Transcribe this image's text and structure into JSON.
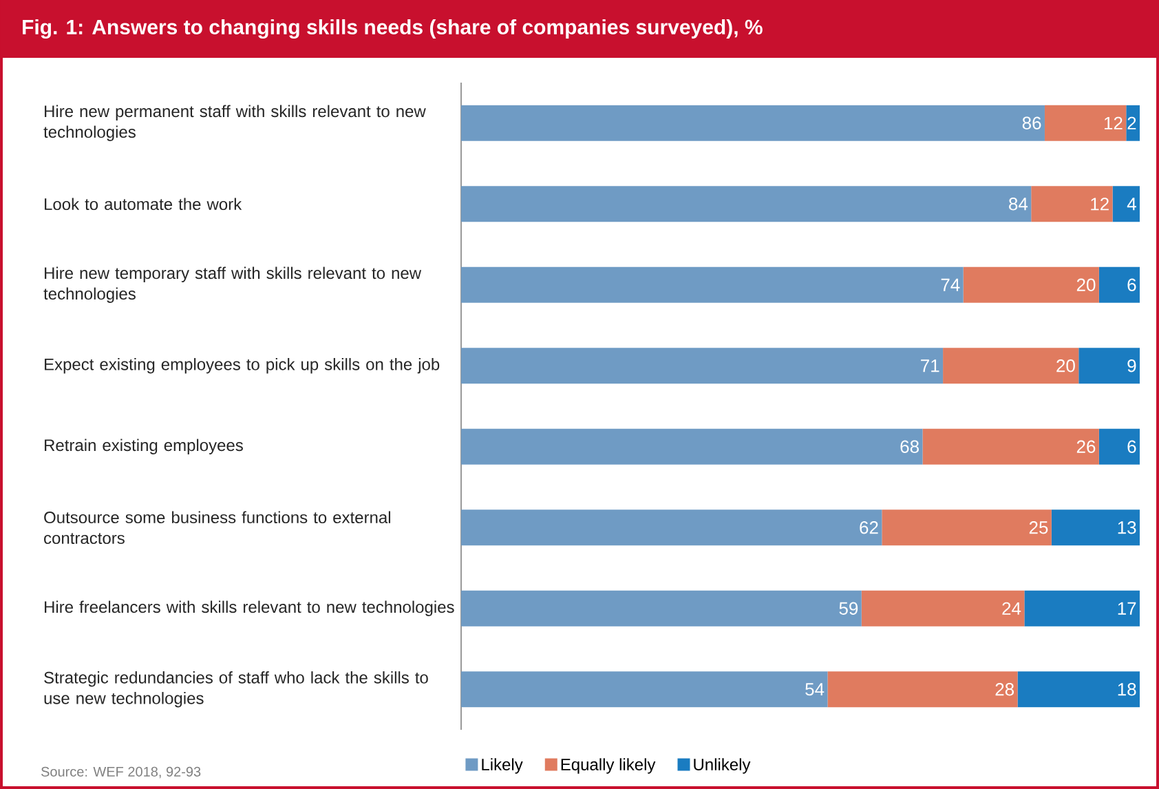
{
  "chart_data": {
    "type": "bar",
    "orientation": "horizontal",
    "stacked": true,
    "data_labels": true,
    "legend": "bottom",
    "title": "Fig. 1: Answers to changing skills needs (share of companies surveyed), %",
    "annotations": [
      "Source: WEF 2018, 92-93"
    ],
    "categories": [
      "Hire new permanent staff with skills relevant to new technologies",
      "Look to automate the work",
      "Hire new temporary staff with skills relevant to new technologies",
      "Expect existing employees to pick up skills on the job",
      "Retrain existing employees",
      "Outsource some business functions to external contractors",
      "Hire freelancers with skills relevant to new technologies",
      "Strategic redundancies of staff who lack the skills to use new technologies"
    ],
    "series": [
      {
        "name": "Likely",
        "color": "#6f9bc4",
        "values": [
          86,
          84,
          74,
          71,
          68,
          62,
          59,
          54
        ]
      },
      {
        "name": "Equally likely",
        "color": "#e07b5f",
        "values": [
          12,
          12,
          20,
          20,
          26,
          25,
          24,
          28
        ]
      },
      {
        "name": "Unlikely",
        "color": "#1a7cc1",
        "values": [
          2,
          4,
          6,
          9,
          6,
          13,
          17,
          18
        ]
      }
    ]
  }
}
